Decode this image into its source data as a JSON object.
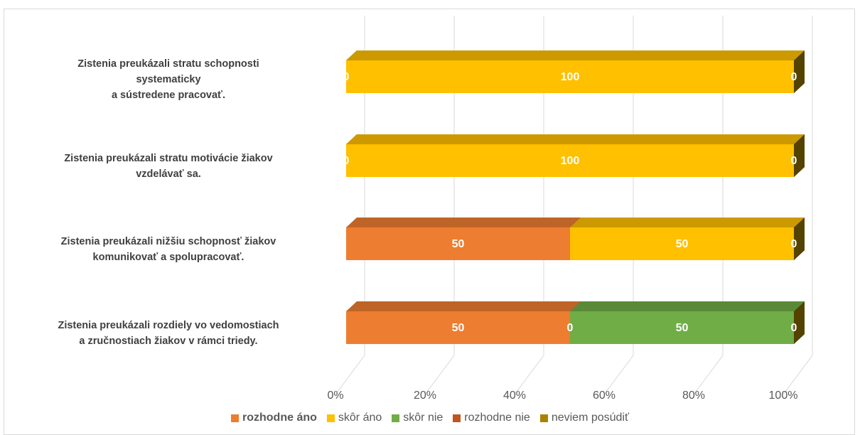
{
  "chart_data": {
    "type": "bar3d_stacked_horizontal",
    "categories": [
      "Zistenia preukázali stratu schopnosti\nsystematicky\na sústredene pracovať.",
      "Zistenia  preukázali stratu motivácie žiakov\nvzdelávať sa.",
      "Zistenia preukázali nižšiu schopnosť žiakov\nkomunikovať a spolupracovať.",
      "Zistenia  preukázali rozdiely vo vedomostiach\na zručnostiach žiakov v rámci triedy."
    ],
    "series": [
      {
        "name": "rozhodne áno",
        "color": "#ED7D31",
        "values": [
          0,
          0,
          50,
          50
        ]
      },
      {
        "name": "skôr áno",
        "color": "#FFC000",
        "values": [
          100,
          100,
          50,
          0
        ]
      },
      {
        "name": "skôr nie",
        "color": "#70AD47",
        "values": [
          null,
          null,
          null,
          50
        ]
      },
      {
        "name": "rozhodne nie",
        "color": "#C0561E",
        "values": [
          null,
          null,
          null,
          null
        ]
      },
      {
        "name": "neviem posúdiť",
        "color": "#A88300",
        "values": [
          0,
          0,
          0,
          0
        ]
      }
    ],
    "xlim": [
      0,
      100
    ],
    "xticks": [
      {
        "value": 0,
        "label": "0%"
      },
      {
        "value": 20,
        "label": "20%"
      },
      {
        "value": 40,
        "label": "40%"
      },
      {
        "value": 60,
        "label": "60%"
      },
      {
        "value": 80,
        "label": "80%"
      },
      {
        "value": 100,
        "label": "100%"
      }
    ],
    "grid": true
  }
}
